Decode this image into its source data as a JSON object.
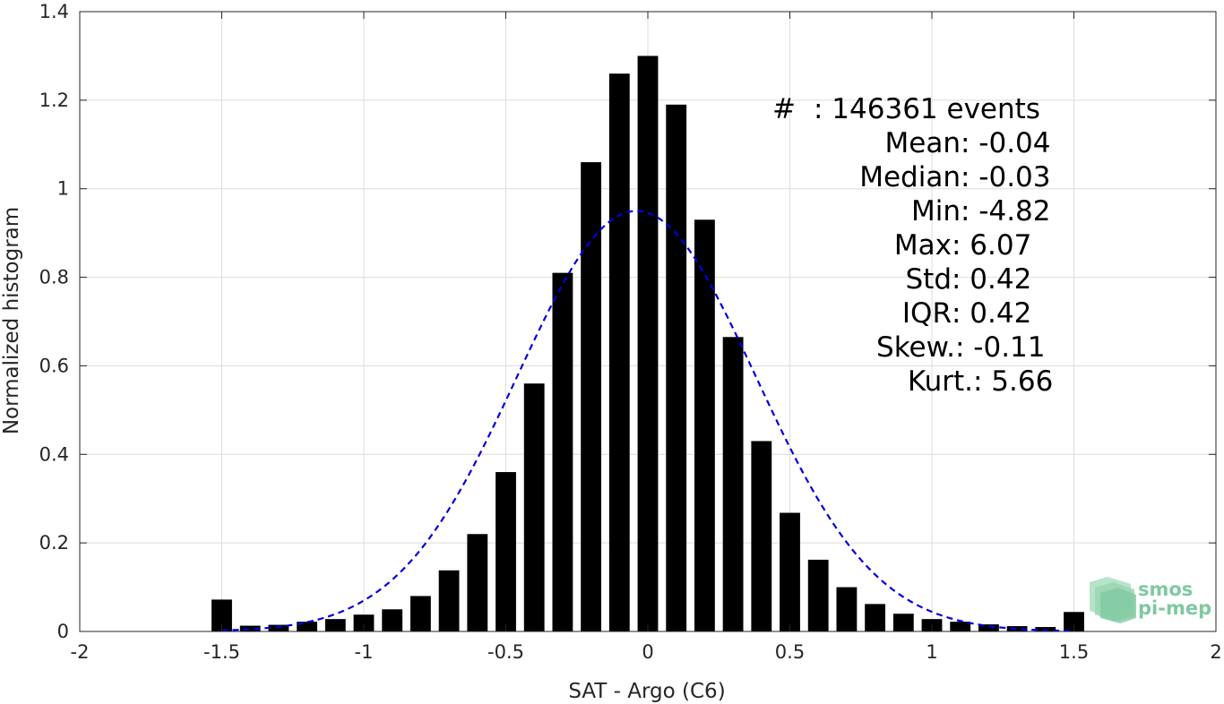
{
  "chart_data": {
    "type": "bar",
    "xlabel": "SAT - Argo (C6)",
    "ylabel": "Normalized histogram",
    "xlim": [
      -2,
      2
    ],
    "ylim": [
      0,
      1.4
    ],
    "xticks": [
      "-2",
      "-1.5",
      "-1",
      "-0.5",
      "0",
      "0.5",
      "1",
      "1.5",
      "2"
    ],
    "yticks": [
      "0",
      "0.2",
      "0.4",
      "0.6",
      "0.8",
      "1",
      "1.2",
      "1.4"
    ],
    "grid": true,
    "bar_color": "#000000",
    "curve_color": "#0000e0",
    "x": [
      -1.5,
      -1.4,
      -1.3,
      -1.2,
      -1.1,
      -1.0,
      -0.9,
      -0.8,
      -0.7,
      -0.6,
      -0.5,
      -0.4,
      -0.3,
      -0.2,
      -0.1,
      0.0,
      0.1,
      0.2,
      0.3,
      0.4,
      0.5,
      0.6,
      0.7,
      0.8,
      0.9,
      1.0,
      1.1,
      1.2,
      1.3,
      1.4,
      1.5
    ],
    "values": [
      0.072,
      0.013,
      0.015,
      0.022,
      0.028,
      0.038,
      0.05,
      0.08,
      0.138,
      0.22,
      0.36,
      0.56,
      0.81,
      1.06,
      1.26,
      1.3,
      1.19,
      0.93,
      0.665,
      0.43,
      0.268,
      0.162,
      0.1,
      0.062,
      0.04,
      0.028,
      0.022,
      0.016,
      0.012,
      0.01,
      0.044
    ],
    "gaussian_fit": {
      "mean": -0.04,
      "std": 0.42,
      "xrange": [
        -1.5,
        1.5
      ],
      "style": "dashed"
    }
  },
  "stats": [
    {
      "label": "#  ",
      "value": ": 146361 events"
    },
    {
      "label": "Mean ",
      "value": ": -0.04"
    },
    {
      "label": "Median ",
      "value": ": -0.03"
    },
    {
      "label": "Min ",
      "value": ": -4.82"
    },
    {
      "label": "Max ",
      "value": ": 6.07"
    },
    {
      "label": "Std ",
      "value": ": 0.42"
    },
    {
      "label": "IQR ",
      "value": ": 0.42"
    },
    {
      "label": "Skew. ",
      "value": ": -0.11"
    },
    {
      "label": "Kurt. ",
      "value": ": 5.66"
    }
  ],
  "logo": {
    "line1": "smos",
    "line2": "pi-mep",
    "color": "#7fc9a0"
  }
}
